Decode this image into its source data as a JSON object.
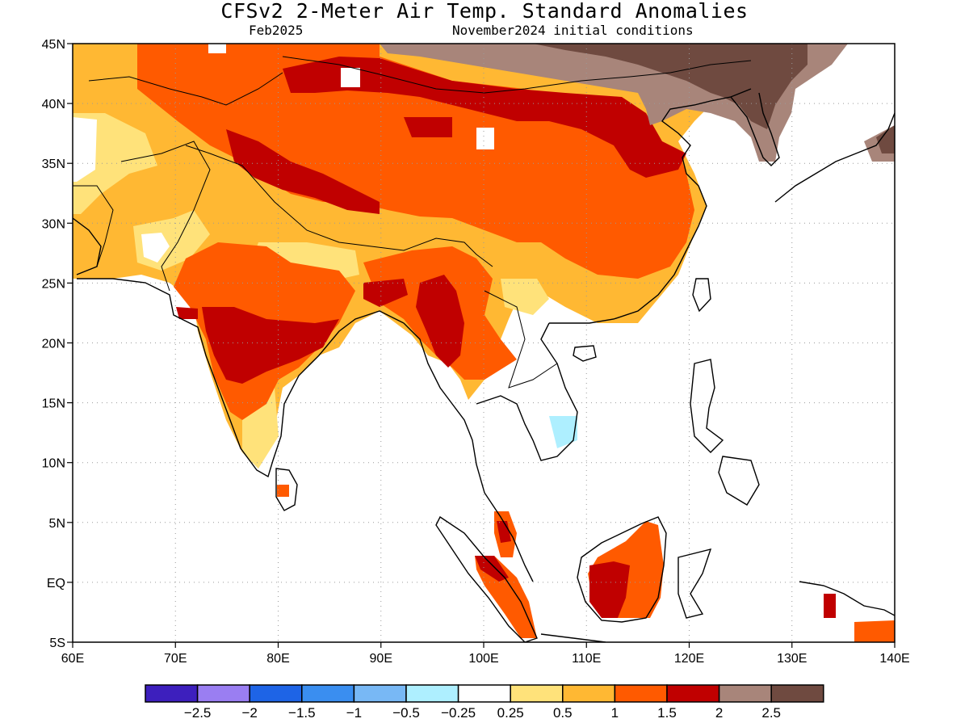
{
  "header": {
    "title": "CFSv2 2-Meter Air Temp. Standard Anomalies",
    "valid_month": "Feb2025",
    "init": "November2024 initial conditions"
  },
  "map": {
    "lon_ticks": [
      "60E",
      "70E",
      "80E",
      "90E",
      "100E",
      "110E",
      "120E",
      "130E",
      "140E"
    ],
    "lat_ticks": [
      "45N",
      "40N",
      "35N",
      "30N",
      "25N",
      "20N",
      "15N",
      "10N",
      "5N",
      "EQ",
      "5S"
    ],
    "lon_range": [
      60,
      140
    ],
    "lat_range": [
      -5,
      45
    ],
    "gridlines": true,
    "palette": {
      "ocean": "#ffffff",
      "coast": "#000000",
      "very_warm": "#c00000",
      "warm": "#ff5a00",
      "mild": "#ffb833",
      "slight": "#ffe27a",
      "hot": "#a8857a",
      "extreme": "#6f4a40",
      "cool": "#aeefff",
      "cooler": "#79b4ff"
    }
  },
  "legend": {
    "labels": [
      "-2.5",
      "-2",
      "-1.5",
      "-1",
      "-0.5",
      "-0.25",
      "0.25",
      "0.5",
      "1",
      "1.5",
      "2",
      "2.5"
    ],
    "colors": [
      "#3d1fbd",
      "#9a7ef2",
      "#1e64e6",
      "#3a8ef0",
      "#78b8f5",
      "#aeefff",
      "#ffffff",
      "#ffe27a",
      "#ffb833",
      "#ff5a00",
      "#c00000",
      "#a8857a",
      "#6f4a40"
    ]
  }
}
